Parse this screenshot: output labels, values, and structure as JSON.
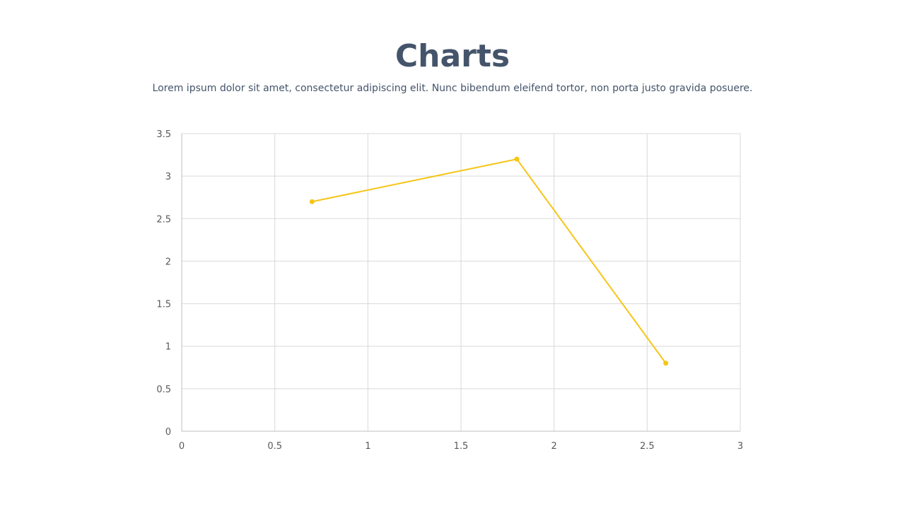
{
  "header": {
    "title": "Charts",
    "subtitle": "Lorem ipsum dolor sit amet, consectetur adipiscing elit. Nunc bibendum eleifend tortor, non porta justo gravida posuere."
  },
  "chart_data": {
    "type": "scatter",
    "mode": "lines+markers",
    "title": "",
    "xlabel": "",
    "ylabel": "",
    "xlim": [
      0,
      3
    ],
    "ylim": [
      0,
      3.5
    ],
    "x_ticks": [
      "0",
      "0.5",
      "1",
      "1.5",
      "2",
      "2.5",
      "3"
    ],
    "y_ticks": [
      "0",
      "0.5",
      "1",
      "1.5",
      "2",
      "2.5",
      "3",
      "3.5"
    ],
    "grid": true,
    "legend": "none",
    "series": [
      {
        "x": [
          0.7,
          1.8,
          2.6
        ],
        "y": [
          2.7,
          3.2,
          0.8
        ],
        "color": "#F5C518"
      }
    ]
  }
}
